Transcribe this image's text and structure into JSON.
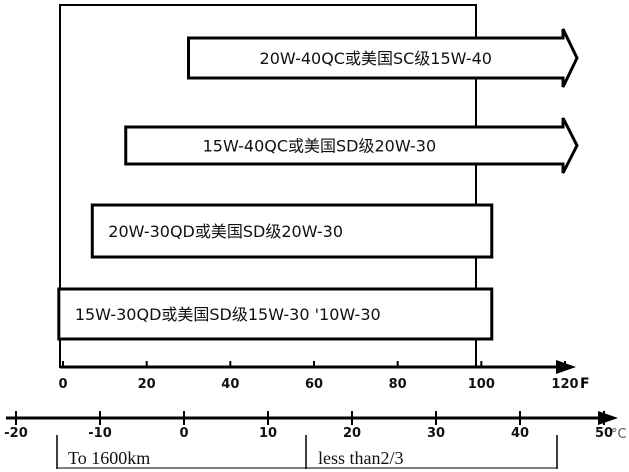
{
  "bars": [
    {
      "label": "20W-40QC或美国SC级15W-40",
      "from_f": 30,
      "to_f": 120,
      "open_ended": true
    },
    {
      "label": "15W-40QC或美国SD级20W-30",
      "from_f": 15,
      "to_f": 120,
      "open_ended": true
    },
    {
      "label": "20W-30QD或美国SD级20W-30",
      "from_f": 7,
      "to_f": 97,
      "open_ended": false
    },
    {
      "label": "15W-30QD或美国SD级15W-30 '10W-30",
      "from_f": -1,
      "to_f": 97,
      "open_ended": false
    }
  ],
  "fahrenheit_axis": {
    "ticks": [
      "0",
      "20",
      "40",
      "60",
      "80",
      "100",
      "120"
    ],
    "unit": "F"
  },
  "celsius_axis": {
    "ticks": [
      "-20",
      "-10",
      "0",
      "10",
      "20",
      "30",
      "40",
      "50"
    ],
    "unit": "°C"
  },
  "table": {
    "cells": [
      "To 1600km",
      "less than2/3"
    ]
  }
}
